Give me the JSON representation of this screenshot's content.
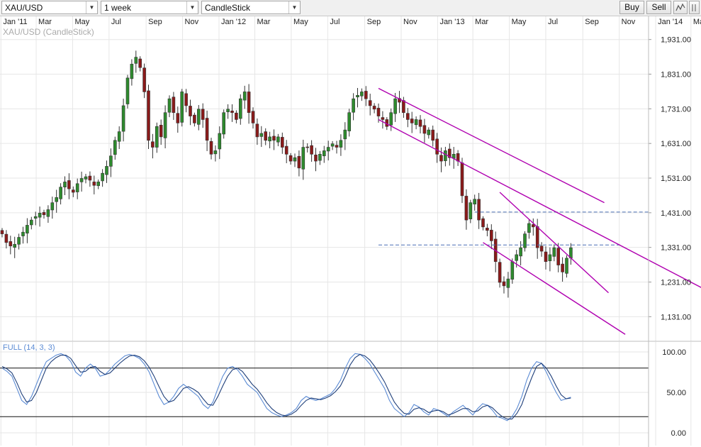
{
  "toolbar": {
    "symbol": "XAU/USD",
    "timeframe": "1 week",
    "chart_type": "CandleStick",
    "buy_label": "Buy",
    "sell_label": "Sell"
  },
  "colors": {
    "up": "#2e8b2e",
    "down": "#8b1a1a",
    "trendline": "#b000b0",
    "hline": "#4a6fb5",
    "stoch_k": "#5b8bd4",
    "stoch_d": "#1f3f7a",
    "grid": "#e6e6e6"
  },
  "chart_data": [
    {
      "type": "candlestick",
      "title": "XAU/USD (CandleStick)",
      "x_ticks": [
        "Jan '11",
        "Mar",
        "May",
        "Jul",
        "Sep",
        "Nov",
        "Jan '12",
        "Mar",
        "May",
        "Jul",
        "Sep",
        "Nov",
        "Jan '13",
        "Mar",
        "May",
        "Jul",
        "Sep",
        "Nov",
        "Jan '14",
        "Mar",
        "May"
      ],
      "y_ticks": [
        "1,931.00",
        "1,831.00",
        "1,731.00",
        "1,631.00",
        "1,531.00",
        "1,431.00",
        "1,331.00",
        "1,231.00",
        "1,131.00"
      ],
      "ylim": [
        1060,
        2000
      ],
      "grid": true,
      "start_date": "2011-01-03",
      "interval": "1 week",
      "close": [
        1370,
        1345,
        1335,
        1340,
        1360,
        1375,
        1395,
        1410,
        1420,
        1430,
        1425,
        1440,
        1460,
        1475,
        1505,
        1520,
        1500,
        1490,
        1515,
        1530,
        1535,
        1525,
        1510,
        1520,
        1545,
        1565,
        1595,
        1640,
        1665,
        1740,
        1820,
        1860,
        1880,
        1850,
        1780,
        1640,
        1620,
        1680,
        1650,
        1720,
        1760,
        1720,
        1690,
        1780,
        1740,
        1710,
        1690,
        1730,
        1700,
        1640,
        1600,
        1610,
        1660,
        1720,
        1730,
        1720,
        1700,
        1760,
        1780,
        1720,
        1690,
        1650,
        1660,
        1640,
        1650,
        1640,
        1650,
        1620,
        1600,
        1580,
        1590,
        1560,
        1620,
        1620,
        1600,
        1580,
        1600,
        1610,
        1620,
        1630,
        1620,
        1640,
        1670,
        1720,
        1760,
        1770,
        1780,
        1760,
        1740,
        1730,
        1710,
        1700,
        1680,
        1720,
        1760,
        1750,
        1720,
        1700,
        1690,
        1700,
        1680,
        1660,
        1670,
        1640,
        1600,
        1580,
        1610,
        1590,
        1600,
        1580,
        1480,
        1410,
        1460,
        1470,
        1410,
        1390,
        1380,
        1350,
        1290,
        1230,
        1220,
        1240,
        1290,
        1310,
        1330,
        1370,
        1400,
        1390,
        1330,
        1320,
        1290,
        1310,
        1330,
        1280,
        1260,
        1300,
        1330
      ],
      "dashed_levels": [
        1433,
        1338
      ],
      "trendlines": [
        {
          "from": [
            "2012-09-24",
            1790
          ],
          "to": [
            "2013-10-07",
            1460
          ]
        },
        {
          "from": [
            "2012-09-24",
            1700
          ],
          "to": [
            "2014-03-24",
            1210
          ]
        },
        {
          "from": [
            "2013-04-15",
            1490
          ],
          "to": [
            "2013-10-14",
            1200
          ]
        },
        {
          "from": [
            "2013-03-18",
            1345
          ],
          "to": [
            "2013-11-11",
            1080
          ]
        }
      ]
    },
    {
      "type": "line",
      "title": "FULL (14, 3, 3)",
      "y_ticks": [
        "100.00",
        "50.00",
        "0.00"
      ],
      "ylim": [
        0,
        100
      ],
      "levels": [
        80,
        20
      ],
      "series": [
        {
          "values": [
            80,
            76,
            70,
            55,
            40,
            35,
            45,
            60,
            75,
            88,
            92,
            96,
            98,
            95,
            88,
            75,
            70,
            80,
            85,
            80,
            70,
            72,
            78,
            85,
            90,
            95,
            97,
            95,
            92,
            85,
            75,
            60,
            45,
            35,
            38,
            45,
            55,
            60,
            55,
            50,
            45,
            35,
            30,
            38,
            55,
            70,
            80,
            82,
            78,
            70,
            60,
            55,
            50,
            40,
            30,
            25,
            22,
            20,
            22,
            25,
            30,
            40,
            45,
            42,
            40,
            42,
            45,
            48,
            55,
            65,
            80,
            92,
            98,
            97,
            92,
            85,
            75,
            65,
            55,
            40,
            30,
            25,
            20,
            25,
            35,
            32,
            26,
            22,
            30,
            28,
            24,
            20,
            26,
            30,
            34,
            28,
            22,
            30,
            36,
            34,
            28,
            20,
            18,
            15,
            20,
            30,
            45,
            65,
            80,
            88,
            86,
            75,
            62,
            50,
            40,
            42,
            44
          ]
        },
        {
          "values": [
            82,
            79,
            74,
            62,
            48,
            38,
            40,
            50,
            65,
            80,
            88,
            93,
            96,
            96,
            92,
            83,
            75,
            76,
            81,
            82,
            76,
            72,
            74,
            80,
            86,
            91,
            95,
            96,
            94,
            89,
            81,
            70,
            57,
            45,
            38,
            40,
            47,
            55,
            57,
            54,
            50,
            42,
            35,
            34,
            45,
            58,
            70,
            78,
            80,
            76,
            68,
            60,
            54,
            46,
            37,
            30,
            25,
            22,
            21,
            23,
            27,
            34,
            40,
            43,
            42,
            41,
            43,
            46,
            51,
            58,
            70,
            84,
            93,
            97,
            95,
            90,
            82,
            73,
            63,
            50,
            38,
            30,
            24,
            23,
            29,
            31,
            29,
            25,
            27,
            28,
            26,
            22,
            24,
            27,
            30,
            30,
            26,
            27,
            32,
            34,
            31,
            25,
            20,
            17,
            17,
            24,
            35,
            52,
            68,
            82,
            86,
            80,
            70,
            58,
            47,
            42,
            43
          ]
        }
      ]
    }
  ]
}
